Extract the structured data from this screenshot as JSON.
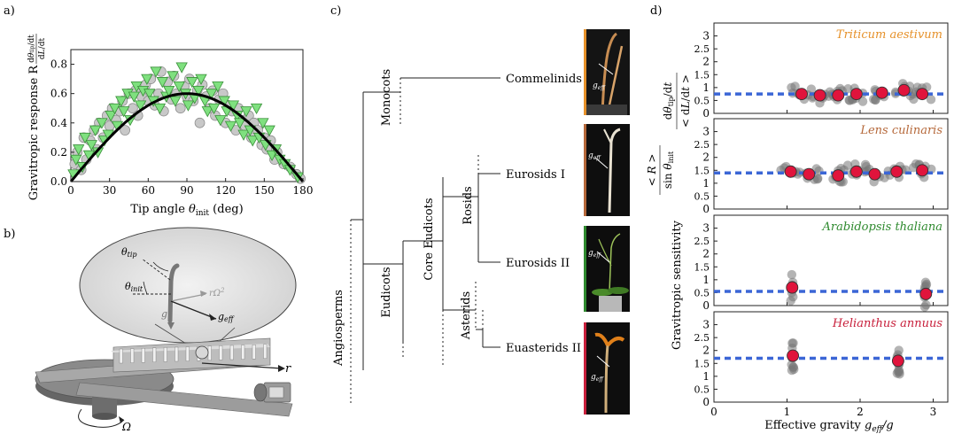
{
  "panels": {
    "a": "a)",
    "b": "b)",
    "c": "c)",
    "d": "d)"
  },
  "panel_a": {
    "ylabel": "Gravitropic response R",
    "ylabel_frac_num": "dθ_tip/dt",
    "ylabel_frac_den": "dL/dt",
    "xlabel": "Tip angle θ_init (deg)",
    "xticks": [
      "0",
      "30",
      "60",
      "90",
      "120",
      "150",
      "180"
    ],
    "yticks": [
      "0.0",
      "0.2",
      "0.4",
      "0.6",
      "0.8"
    ]
  },
  "panel_b": {
    "labels": {
      "theta_tip": "θ_tip",
      "theta_init": "θ_init",
      "r_omega2": "rΩ²",
      "g": "g",
      "g_eff": "g_eff",
      "r": "r",
      "omega": "Ω"
    }
  },
  "panel_c": {
    "clades": {
      "angiosperms": "Angiosperms",
      "monocots": "Monocots",
      "eudicots": "Eudicots",
      "core_eudicots": "Core Eudicots",
      "rosids": "Rosids",
      "asterids": "Asterids"
    },
    "tips": [
      {
        "label": "Commelinids",
        "color": "#e6912a"
      },
      {
        "label": "Eurosids I",
        "color": "#b5683a"
      },
      {
        "label": "Eurosids II",
        "color": "#2f8a2f"
      },
      {
        "label": "Euasterids II",
        "color": "#c8203c"
      }
    ],
    "photo_label": "g_eff"
  },
  "panel_d": {
    "ylabel_sens": "Gravitropic sensitivity",
    "ylabel_top": "dθ_tip/dt / < dL/dt >",
    "ylabel_bottom": "< R > / sin θ_init",
    "xlabel": "Effective gravity g_eff/g",
    "xticks": [
      "0",
      "1",
      "2",
      "3"
    ],
    "yticks": [
      "0",
      "0.5",
      "1",
      "1.5",
      "2",
      "2.5",
      "3"
    ],
    "species": [
      {
        "name": "Triticum aestivum",
        "color": "#e6912a"
      },
      {
        "name": "Lens culinaris",
        "color": "#b5683a"
      },
      {
        "name": "Arabidopsis thaliana",
        "color": "#2f8a2f"
      },
      {
        "name": "Helianthus annuus",
        "color": "#c8203c"
      }
    ]
  },
  "chart_data": [
    {
      "type": "scatter",
      "title": "",
      "xlabel": "Tip angle θ_init (deg)",
      "ylabel": "Gravitropic response R",
      "xlim": [
        0,
        180
      ],
      "ylim": [
        0,
        0.9
      ],
      "series": [
        {
          "name": "",
          "marker": "circle",
          "color": "#c8c8c8",
          "x": [
            3,
            5,
            8,
            10,
            12,
            15,
            18,
            20,
            22,
            25,
            28,
            30,
            32,
            35,
            38,
            40,
            42,
            45,
            48,
            50,
            52,
            55,
            58,
            60,
            62,
            65,
            68,
            70,
            72,
            75,
            78,
            80,
            82,
            85,
            88,
            90,
            92,
            95,
            98,
            100,
            102,
            105,
            108,
            110,
            112,
            115,
            118,
            120,
            122,
            125,
            128,
            130,
            132,
            135,
            138,
            140,
            142,
            145,
            148,
            150,
            152,
            155,
            158,
            160,
            165,
            170,
            175,
            178
          ],
          "y": [
            0.12,
            0.2,
            0.08,
            0.3,
            0.15,
            0.28,
            0.35,
            0.22,
            0.4,
            0.3,
            0.45,
            0.38,
            0.5,
            0.42,
            0.48,
            0.55,
            0.35,
            0.6,
            0.5,
            0.62,
            0.45,
            0.58,
            0.66,
            0.55,
            0.7,
            0.52,
            0.6,
            0.75,
            0.48,
            0.68,
            0.56,
            0.72,
            0.6,
            0.5,
            0.65,
            0.58,
            0.7,
            0.55,
            0.62,
            0.4,
            0.66,
            0.58,
            0.5,
            0.62,
            0.45,
            0.56,
            0.6,
            0.4,
            0.52,
            0.48,
            0.35,
            0.5,
            0.42,
            0.38,
            0.45,
            0.3,
            0.4,
            0.35,
            0.25,
            0.3,
            0.22,
            0.28,
            0.15,
            0.2,
            0.12,
            0.1,
            0.05,
            0.02
          ]
        },
        {
          "name": "",
          "marker": "triangle-down",
          "color": "#7fe07f",
          "x": [
            2,
            4,
            6,
            9,
            11,
            14,
            16,
            19,
            21,
            24,
            26,
            29,
            31,
            34,
            36,
            39,
            41,
            44,
            46,
            49,
            51,
            54,
            56,
            59,
            61,
            64,
            66,
            69,
            71,
            74,
            76,
            79,
            81,
            84,
            86,
            89,
            91,
            94,
            96,
            99,
            101,
            104,
            106,
            109,
            111,
            114,
            116,
            119,
            121,
            124,
            126,
            129,
            131,
            134,
            136,
            139,
            141,
            144,
            146,
            149,
            151,
            154,
            156,
            159,
            162,
            166,
            170,
            176
          ],
          "y": [
            0.05,
            0.15,
            0.22,
            0.1,
            0.3,
            0.18,
            0.25,
            0.35,
            0.2,
            0.4,
            0.28,
            0.32,
            0.45,
            0.5,
            0.38,
            0.55,
            0.48,
            0.6,
            0.42,
            0.58,
            0.65,
            0.52,
            0.62,
            0.7,
            0.6,
            0.55,
            0.75,
            0.5,
            0.68,
            0.58,
            0.62,
            0.72,
            0.55,
            0.65,
            0.78,
            0.6,
            0.52,
            0.68,
            0.57,
            0.62,
            0.7,
            0.55,
            0.48,
            0.6,
            0.5,
            0.65,
            0.42,
            0.55,
            0.48,
            0.38,
            0.52,
            0.45,
            0.4,
            0.32,
            0.48,
            0.35,
            0.28,
            0.5,
            0.3,
            0.4,
            0.25,
            0.35,
            0.18,
            0.22,
            0.15,
            0.12,
            0.08,
            0.03
          ]
        }
      ],
      "curve": {
        "type": "sine",
        "amplitude": 0.6
      }
    },
    {
      "type": "scatter",
      "xlabel": "Effective gravity g_eff/g",
      "ylabel": "Gravitropic sensitivity",
      "xlim": [
        0,
        3.2
      ],
      "ylim": [
        0,
        3.5
      ],
      "panels": [
        {
          "species": "Triticum aestivum",
          "mean_line": 0.75,
          "points": [
            [
              1.2,
              0.75
            ],
            [
              1.45,
              0.7
            ],
            [
              1.7,
              0.7
            ],
            [
              1.95,
              0.75
            ],
            [
              2.3,
              0.8
            ],
            [
              2.6,
              0.9
            ],
            [
              2.85,
              0.75
            ]
          ]
        },
        {
          "species": "Lens culinaris",
          "mean_line": 1.4,
          "points": [
            [
              1.05,
              1.45
            ],
            [
              1.3,
              1.35
            ],
            [
              1.7,
              1.3
            ],
            [
              1.95,
              1.45
            ],
            [
              2.2,
              1.35
            ],
            [
              2.5,
              1.45
            ],
            [
              2.85,
              1.5
            ]
          ]
        },
        {
          "species": "Arabidopsis thaliana",
          "mean_line": 0.55,
          "points": [
            [
              1.07,
              0.7
            ],
            [
              2.9,
              0.45
            ]
          ]
        },
        {
          "species": "Helianthus annuus",
          "mean_line": 1.7,
          "points": [
            [
              1.08,
              1.8
            ],
            [
              2.52,
              1.6
            ]
          ]
        }
      ]
    }
  ]
}
